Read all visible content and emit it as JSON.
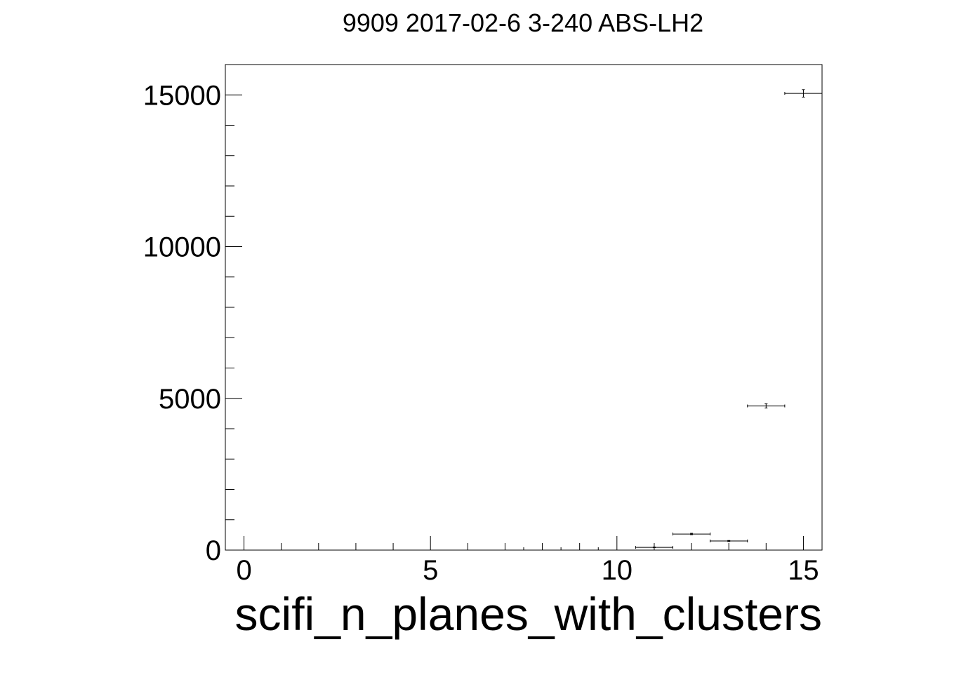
{
  "chart_data": {
    "type": "scatter",
    "title": "9909 2017-02-6 3-240 ABS-LH2",
    "xlabel": "scifi_n_planes_with_clusters",
    "ylabel": "",
    "xlim": [
      -0.5,
      15.5
    ],
    "ylim": [
      0,
      16000
    ],
    "x_ticks": [
      0,
      5,
      10,
      15
    ],
    "y_ticks": [
      0,
      5000,
      10000,
      15000
    ],
    "x_tick_labels": [
      "0",
      "5",
      "10",
      "15"
    ],
    "y_tick_labels": [
      "0",
      "5000",
      "10000",
      "15000"
    ],
    "grid": false,
    "legend": "none",
    "color": "#000000",
    "points": [
      {
        "x": 11,
        "y": 90,
        "xerr": 0.5,
        "yerr": 10
      },
      {
        "x": 12,
        "y": 530,
        "xerr": 0.5,
        "yerr": 23
      },
      {
        "x": 13,
        "y": 300,
        "xerr": 0.5,
        "yerr": 17
      },
      {
        "x": 14,
        "y": 4750,
        "xerr": 0.5,
        "yerr": 69
      },
      {
        "x": 15,
        "y": 15050,
        "xerr": 0.5,
        "yerr": 123
      }
    ]
  }
}
